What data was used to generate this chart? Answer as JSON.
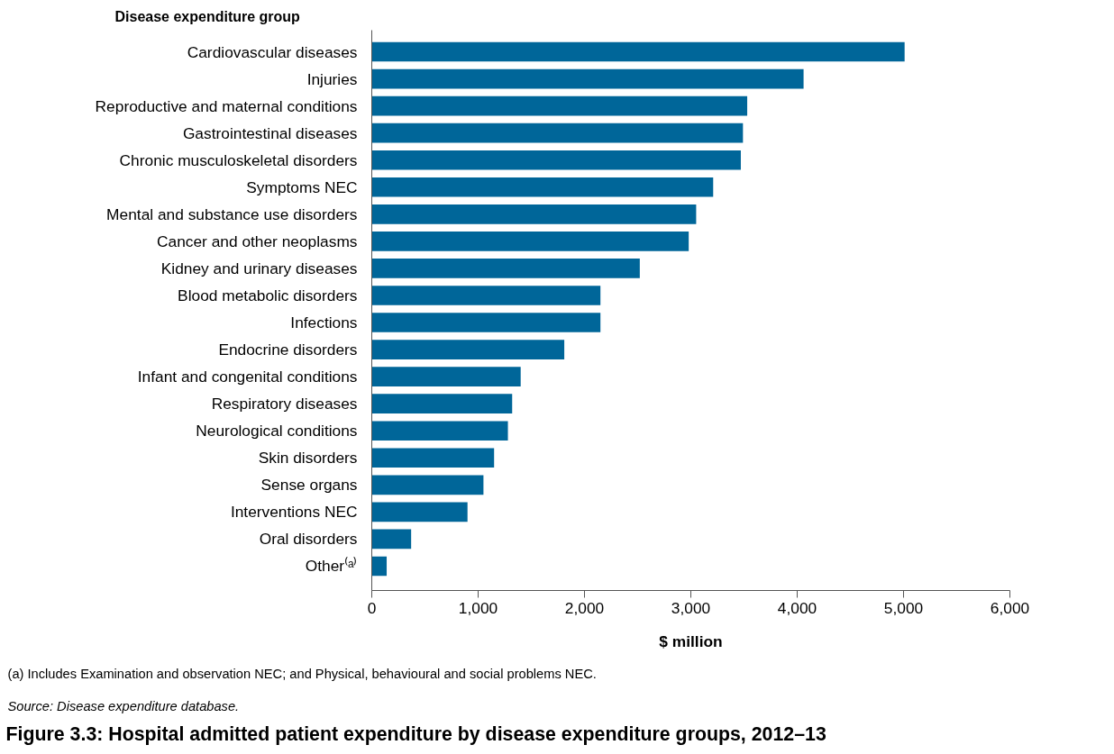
{
  "chart_data": {
    "type": "bar",
    "orientation": "horizontal",
    "title": "Figure 3.3: Hospital admitted patient expenditure by disease expenditure groups, 2012–13",
    "ylabel": "Disease expenditure group",
    "xlabel": "$ million",
    "categories": [
      "Cardiovascular diseases",
      "Injuries",
      "Reproductive and maternal conditions",
      "Gastrointestinal diseases",
      "Chronic musculoskeletal disorders",
      "Symptoms NEC",
      "Mental and substance use disorders",
      "Cancer and other neoplasms",
      "Kidney and urinary diseases",
      "Blood metabolic disorders",
      "Infections",
      "Endocrine disorders",
      "Infant and congenital conditions",
      "Respiratory diseases",
      "Neurological conditions",
      "Skin disorders",
      "Sense organs",
      "Interventions NEC",
      "Oral disorders",
      "Other⁽ᵃ⁾"
    ],
    "values": [
      5010,
      4060,
      3530,
      3490,
      3470,
      3210,
      3050,
      2980,
      2520,
      2150,
      2150,
      1810,
      1400,
      1320,
      1280,
      1150,
      1050,
      900,
      370,
      140
    ],
    "color": "#006699",
    "xlim": [
      0,
      6000
    ],
    "xticks": [
      {
        "value": 0,
        "label": "0"
      },
      {
        "value": 1000,
        "label": "1,000"
      },
      {
        "value": 2000,
        "label": "2,000"
      },
      {
        "value": 3000,
        "label": "3,000"
      },
      {
        "value": 4000,
        "label": "4,000"
      },
      {
        "value": 5000,
        "label": "5,000"
      },
      {
        "value": 6000,
        "label": "6,000"
      }
    ],
    "grid": false,
    "annotations": [
      "(a)      Includes Examination and observation NEC; and Physical, behavioural and social problems NEC.",
      "Source: Disease expenditure database."
    ]
  }
}
